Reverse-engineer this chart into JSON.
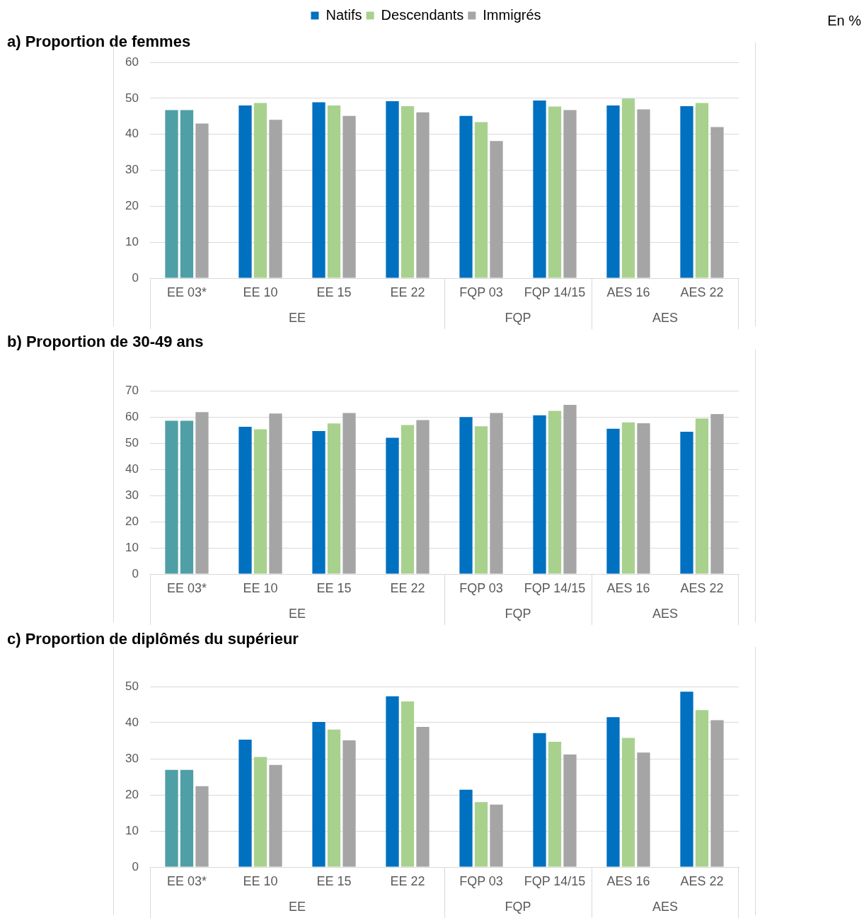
{
  "chart_data": [
    {
      "type": "bar",
      "title": "a) Proportion de femmes",
      "categories": [
        "EE 03*",
        "EE 10",
        "EE 15",
        "EE 22",
        "FQP 03",
        "FQP 14/15",
        "AES 16",
        "AES 22"
      ],
      "ylim": [
        0,
        60
      ],
      "yticks": [
        0,
        10,
        20,
        30,
        40,
        50,
        60
      ],
      "grid": "y",
      "legend": "top",
      "annotations": [
        "En %",
        "EE",
        "FQP",
        "AES"
      ],
      "series": [
        {
          "name": "Natifs",
          "color": "#0070c0",
          "colors": [
            "#4f9fa6",
            "#0070c0",
            "#0070c0",
            "#0070c0",
            "#0070c0",
            "#0070c0",
            "#0070c0",
            "#0070c0"
          ],
          "values": [
            46.7,
            48,
            48.9,
            49.2,
            45.1,
            49.4,
            48,
            47.8
          ]
        },
        {
          "name": "Descendants",
          "color": "#a9d18e",
          "colors": [
            "#4f9fa6",
            "#a9d18e",
            "#a9d18e",
            "#a9d18e",
            "#a9d18e",
            "#a9d18e",
            "#a9d18e",
            "#a9d18e"
          ],
          "values": [
            46.7,
            48.7,
            48,
            47.8,
            43.4,
            47.7,
            49.9,
            48.7
          ]
        },
        {
          "name": "Immigrés",
          "color": "#a5a5a5",
          "values": [
            43,
            44,
            45.1,
            46.1,
            38.1,
            46.7,
            46.9,
            42
          ]
        }
      ]
    },
    {
      "type": "bar",
      "title": "b) Proportion de 30-49 ans",
      "categories": [
        "EE 03*",
        "EE 10",
        "EE 15",
        "EE 22",
        "FQP 03",
        "FQP 14/15",
        "AES 16",
        "AES 22"
      ],
      "ylim": [
        0,
        70
      ],
      "yticks": [
        0,
        10,
        20,
        30,
        40,
        50,
        60,
        70
      ],
      "grid": "y",
      "annotations": [
        "EE",
        "FQP",
        "AES"
      ],
      "series": [
        {
          "color": "#0070c0",
          "colors": [
            "#4f9fa6",
            "#0070c0",
            "#0070c0",
            "#0070c0",
            "#0070c0",
            "#0070c0",
            "#0070c0",
            "#0070c0"
          ],
          "values": [
            58.5,
            56.2,
            54.6,
            52,
            59.9,
            60.6,
            55.5,
            54.3
          ]
        },
        {
          "color": "#a9d18e",
          "colors": [
            "#4f9fa6",
            "#a9d18e",
            "#a9d18e",
            "#a9d18e",
            "#a9d18e",
            "#a9d18e",
            "#a9d18e",
            "#a9d18e"
          ],
          "values": [
            58.5,
            55.3,
            57.5,
            56.9,
            56.4,
            62.3,
            57.9,
            59.4
          ]
        },
        {
          "color": "#a5a5a5",
          "values": [
            61.8,
            61.3,
            61.5,
            58.8,
            61.5,
            64.6,
            57.6,
            61.1
          ]
        }
      ]
    },
    {
      "type": "bar",
      "title": "c) Proportion de diplômés du supérieur",
      "categories": [
        "EE 03*",
        "EE 10",
        "EE 15",
        "EE 22",
        "FQP 03",
        "FQP 14/15",
        "AES 16",
        "AES 22"
      ],
      "ylim": [
        0,
        50
      ],
      "yticks": [
        0,
        10,
        20,
        30,
        40,
        50
      ],
      "grid": "y",
      "annotations": [
        "EE",
        "FQP",
        "AES"
      ],
      "series": [
        {
          "color": "#0070c0",
          "colors": [
            "#4f9fa6",
            "#0070c0",
            "#0070c0",
            "#0070c0",
            "#0070c0",
            "#0070c0",
            "#0070c0",
            "#0070c0"
          ],
          "values": [
            26.9,
            35.3,
            40.2,
            47.3,
            21.4,
            37.1,
            41.5,
            48.6
          ]
        },
        {
          "color": "#a9d18e",
          "colors": [
            "#4f9fa6",
            "#a9d18e",
            "#a9d18e",
            "#a9d18e",
            "#a9d18e",
            "#a9d18e",
            "#a9d18e",
            "#a9d18e"
          ],
          "values": [
            26.9,
            30.5,
            38.1,
            45.9,
            18,
            34.7,
            35.8,
            43.5
          ]
        },
        {
          "color": "#a5a5a5",
          "values": [
            22.4,
            28.3,
            35.1,
            38.8,
            17.3,
            31.2,
            31.7,
            40.7
          ]
        }
      ]
    }
  ]
}
